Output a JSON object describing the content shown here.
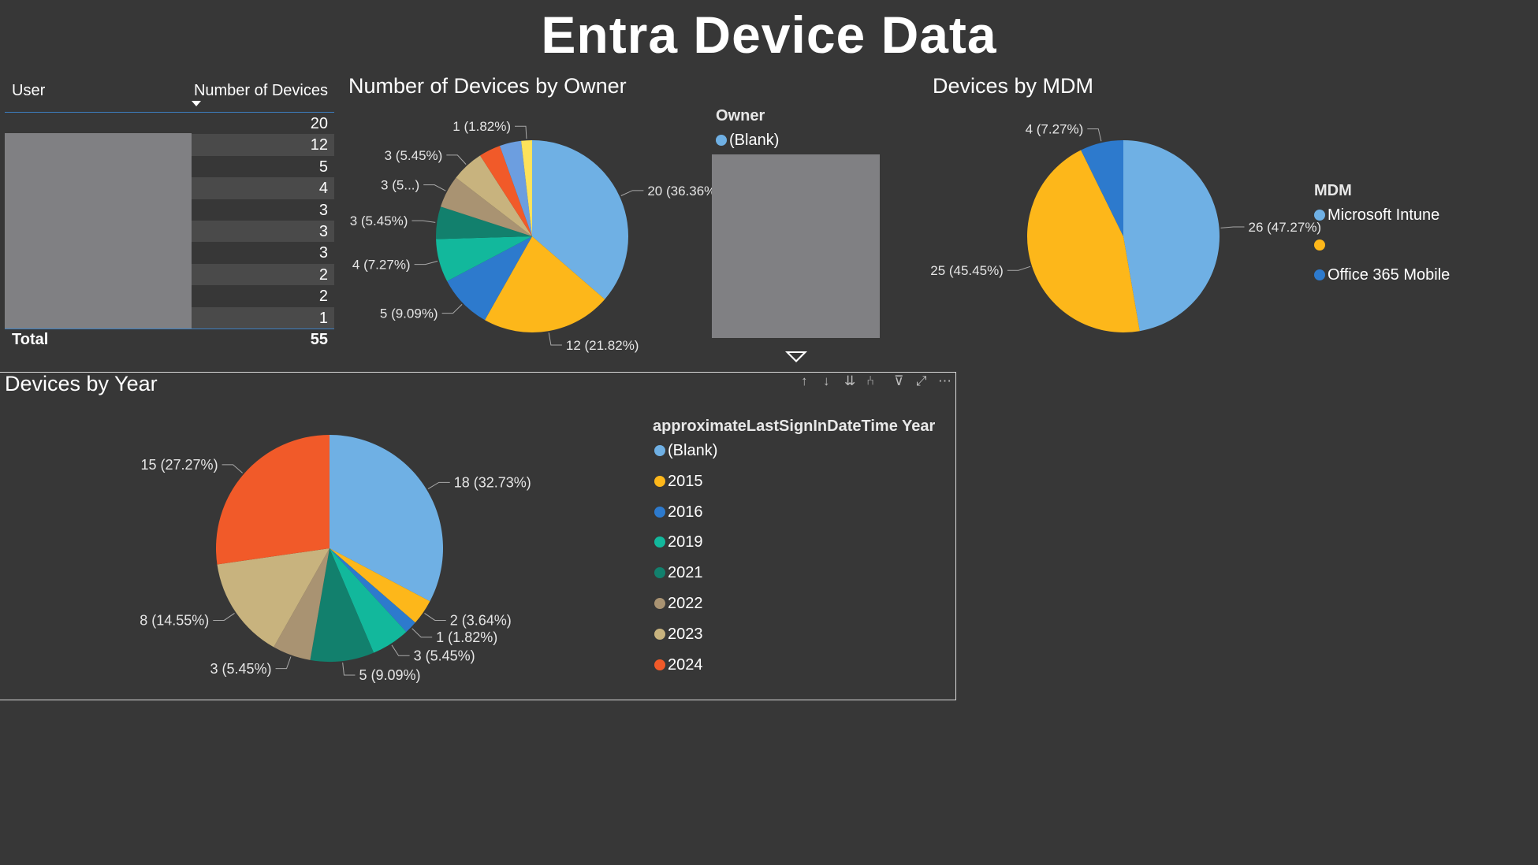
{
  "page_title": "Entra Device Data",
  "user_table": {
    "col_user": "User",
    "col_count": "Number of Devices",
    "rows": [
      20,
      12,
      5,
      4,
      3,
      3,
      3,
      2,
      2,
      1
    ],
    "total_label": "Total",
    "total_value": 55
  },
  "owner_slicer": {
    "title": "Owner",
    "item": "(Blank)",
    "item_color": "#6fb0e4"
  },
  "toolbar": {
    "up": "↑",
    "down": "↓",
    "expand": "⇊",
    "drill": "⑃",
    "filter": "⊽",
    "focus": "⤢",
    "more": "⋯"
  },
  "chart_data": [
    {
      "id": "owner",
      "type": "pie",
      "title": "Number of Devices by Owner",
      "slices": [
        {
          "value": 20,
          "label": "20 (36.36%)",
          "color": "#6fb0e4"
        },
        {
          "value": 12,
          "label": "12 (21.82%)",
          "color": "#fdb71a"
        },
        {
          "value": 5,
          "label": "5 (9.09%)",
          "color": "#2d7acd"
        },
        {
          "value": 4,
          "label": "4 (7.27%)",
          "color": "#12b89c"
        },
        {
          "value": 3,
          "label": "3 (5.45%)",
          "color": "#12806d"
        },
        {
          "value": 3,
          "label": "3 (5...)",
          "color": "#a99372"
        },
        {
          "value": 3,
          "label": "3 (5.45%)",
          "color": "#c8b37e"
        },
        {
          "value": 2,
          "label": "",
          "color": "#f15a29"
        },
        {
          "value": 2,
          "label": "",
          "color": "#6c9ee0"
        },
        {
          "value": 1,
          "label": "1 (1.82%)",
          "color": "#fde25a"
        }
      ]
    },
    {
      "id": "mdm",
      "type": "pie",
      "title": "Devices by MDM",
      "legend_title": "MDM",
      "slices": [
        {
          "name": "Microsoft Intune",
          "value": 26,
          "label": "26 (47.27%)",
          "color": "#6fb0e4"
        },
        {
          "name": "",
          "value": 25,
          "label": "25 (45.45%)",
          "color": "#fdb71a"
        },
        {
          "name": "Office 365 Mobile",
          "value": 4,
          "label": "4 (7.27%)",
          "color": "#2d7acd"
        }
      ]
    },
    {
      "id": "year",
      "type": "pie",
      "title": "Devices by Year",
      "legend_title": "approximateLastSignInDateTime Year",
      "slices": [
        {
          "name": "(Blank)",
          "value": 18,
          "label": "18 (32.73%)",
          "color": "#6fb0e4"
        },
        {
          "name": "2015",
          "value": 2,
          "label": "2 (3.64%)",
          "color": "#fdb71a"
        },
        {
          "name": "2016",
          "value": 1,
          "label": "1 (1.82%)",
          "color": "#2d7acd"
        },
        {
          "name": "2019",
          "value": 3,
          "label": "3 (5.45%)",
          "color": "#12b89c"
        },
        {
          "name": "2021",
          "value": 5,
          "label": "5 (9.09%)",
          "color": "#12806d"
        },
        {
          "name": "2022",
          "value": 3,
          "label": "3 (5.45%)",
          "color": "#a99372"
        },
        {
          "name": "2023",
          "value": 8,
          "label": "8 (14.55%)",
          "color": "#c8b37e"
        },
        {
          "name": "2024",
          "value": 15,
          "label": "15 (27.27%)",
          "color": "#f15a29"
        }
      ]
    }
  ]
}
